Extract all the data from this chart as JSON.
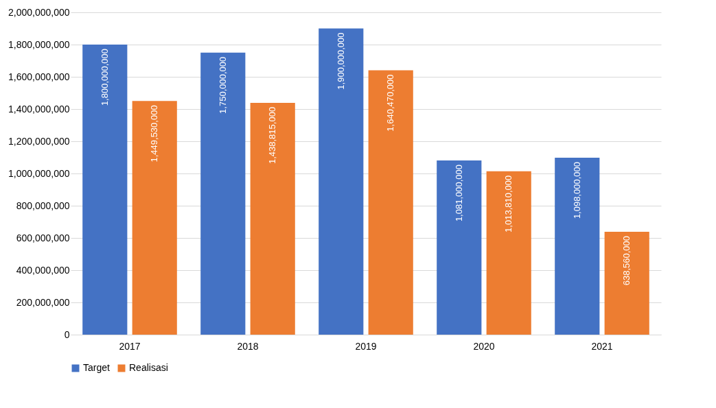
{
  "chart_data": {
    "type": "bar",
    "categories": [
      "2017",
      "2018",
      "2019",
      "2020",
      "2021"
    ],
    "series": [
      {
        "name": "Target",
        "color": "#4472c4",
        "values": [
          1800000000,
          1750000000,
          1900000000,
          1081000000,
          1098000000
        ],
        "value_labels": [
          "1,800,000,000",
          "1,750,000,000",
          "1,900,000,000",
          "1,081,000,000",
          "1,098,000,000"
        ]
      },
      {
        "name": "Realisasi",
        "color": "#ed7d31",
        "values": [
          1449530000,
          1438815000,
          1640470000,
          1013810000,
          638560000
        ],
        "value_labels": [
          "1,449,530,000",
          "1,438,815,000",
          "1,640,470,000",
          "1,013,810,000",
          "638,560,000"
        ]
      }
    ],
    "ylim": [
      0,
      2000000000
    ],
    "yticks": [
      0,
      {
        "value": 200000000,
        "label": "200,000,000"
      },
      {
        "value": 400000000,
        "label": "400,000,000"
      },
      {
        "value": 600000000,
        "label": "600,000,000"
      },
      {
        "value": 800000000,
        "label": "800,000,000"
      },
      {
        "value": 1000000000,
        "label": "1,000,000,000"
      },
      {
        "value": 1200000000,
        "label": "1,200,000,000"
      },
      {
        "value": 1400000000,
        "label": "1,400,000,000"
      },
      {
        "value": 1600000000,
        "label": "1,600,000,000"
      },
      {
        "value": 1800000000,
        "label": "1,800,000,000"
      },
      {
        "value": 2000000000,
        "label": "2,000,000,000"
      }
    ],
    "grid": "y",
    "legend": "bottom"
  }
}
